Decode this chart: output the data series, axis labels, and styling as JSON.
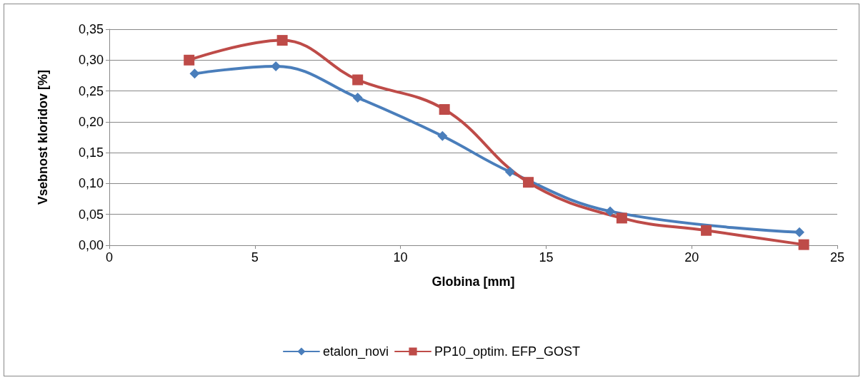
{
  "chart_data": {
    "type": "line",
    "xlabel": "Globina [mm]",
    "ylabel": "Vsebnost kloridov [%]",
    "xlim": [
      0,
      25
    ],
    "xticks": [
      0,
      5,
      10,
      15,
      20,
      25
    ],
    "ylim": [
      0,
      0.35
    ],
    "yticks": [
      {
        "value": 0,
        "label": "0,00"
      },
      {
        "value": 0.05,
        "label": "0,05"
      },
      {
        "value": 0.1,
        "label": "0,10"
      },
      {
        "value": 0.15,
        "label": "0,15"
      },
      {
        "value": 0.2,
        "label": "0,20"
      },
      {
        "value": 0.25,
        "label": "0,25"
      },
      {
        "value": 0.3,
        "label": "0,30"
      },
      {
        "value": 0.35,
        "label": "0,35"
      }
    ],
    "grid": "y",
    "legend": "bottom",
    "line_style": "solid",
    "series": [
      {
        "name": "etalon_novi",
        "color": "#4a7ebb",
        "marker": "diamond",
        "x": [
          2.93,
          5.72,
          8.53,
          11.44,
          13.76,
          17.2,
          20.5,
          23.7
        ],
        "values": [
          0.278,
          0.29,
          0.239,
          0.177,
          0.119,
          0.055,
          null,
          0.021
        ]
      },
      {
        "name": "PP10_optim. EFP_GOST",
        "color": "#be4b48",
        "marker": "square",
        "x": [
          2.74,
          5.94,
          8.53,
          11.51,
          14.39,
          17.6,
          20.5,
          23.85
        ],
        "values": [
          0.3,
          0.332,
          0.268,
          0.22,
          0.102,
          0.044,
          0.024,
          0.001
        ]
      }
    ]
  }
}
